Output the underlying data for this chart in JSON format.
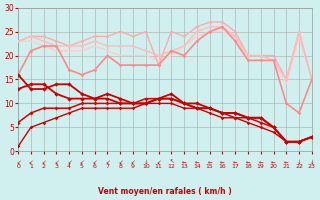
{
  "bg_color": "#cff0ee",
  "grid_color": "#aaaaaa",
  "xlabel": "Vent moyen/en rafales ( km/h )",
  "xlabel_color": "#cc0000",
  "tick_color": "#cc0000",
  "xlim": [
    0,
    23
  ],
  "ylim": [
    0,
    30
  ],
  "yticks": [
    0,
    5,
    10,
    15,
    20,
    25,
    30
  ],
  "xticks": [
    0,
    1,
    2,
    3,
    4,
    5,
    6,
    7,
    8,
    9,
    10,
    11,
    12,
    13,
    14,
    15,
    16,
    17,
    18,
    19,
    20,
    21,
    22,
    23
  ],
  "lines": [
    {
      "comment": "light pink top line - starts ~23, dips, rises to 27, falls",
      "x": [
        0,
        1,
        2,
        3,
        4,
        5,
        6,
        7,
        8,
        9,
        10,
        11,
        12,
        13,
        14,
        15,
        16,
        17,
        18,
        19,
        20,
        21,
        22,
        23
      ],
      "y": [
        23,
        24,
        24,
        23,
        22,
        23,
        24,
        24,
        25,
        24,
        25,
        18,
        25,
        24,
        26,
        27,
        27,
        25,
        20,
        20,
        20,
        15,
        25,
        15
      ],
      "color": "#ffaaaa",
      "lw": 1.0,
      "marker": "o",
      "ms": 2.0,
      "zorder": 3
    },
    {
      "comment": "medium pink line - starts ~23, roughly flat then decreasing",
      "x": [
        0,
        1,
        2,
        3,
        4,
        5,
        6,
        7,
        8,
        9,
        10,
        11,
        12,
        13,
        14,
        15,
        16,
        17,
        18,
        19,
        20,
        21,
        22,
        23
      ],
      "y": [
        23,
        24,
        23,
        22,
        22,
        22,
        23,
        22,
        22,
        22,
        21,
        20,
        21,
        22,
        25,
        26,
        26,
        24,
        20,
        20,
        19,
        15,
        25,
        15
      ],
      "color": "#ffbbbb",
      "lw": 1.0,
      "marker": "o",
      "ms": 1.8,
      "zorder": 3
    },
    {
      "comment": "lighter pink declining line",
      "x": [
        0,
        1,
        2,
        3,
        4,
        5,
        6,
        7,
        8,
        9,
        10,
        11,
        12,
        13,
        14,
        15,
        16,
        17,
        18,
        19,
        20,
        21,
        22,
        23
      ],
      "y": [
        23,
        23,
        22,
        21,
        21,
        21,
        22,
        21,
        20,
        20,
        20,
        19,
        20,
        22,
        24,
        25,
        25,
        24,
        19,
        19,
        19,
        14,
        24,
        15
      ],
      "color": "#ffcccc",
      "lw": 1.0,
      "marker": null,
      "ms": 0,
      "zorder": 2
    },
    {
      "comment": "pink medium with dip around x=3-4, rises at end",
      "x": [
        0,
        1,
        2,
        3,
        4,
        5,
        6,
        7,
        8,
        9,
        10,
        11,
        12,
        13,
        14,
        15,
        16,
        17,
        18,
        19,
        20,
        21,
        22,
        23
      ],
      "y": [
        16,
        21,
        22,
        22,
        17,
        16,
        17,
        20,
        18,
        18,
        18,
        18,
        21,
        20,
        23,
        25,
        26,
        23,
        19,
        19,
        19,
        10,
        8,
        15
      ],
      "color": "#ff8888",
      "lw": 1.2,
      "marker": "o",
      "ms": 2.0,
      "zorder": 4
    },
    {
      "comment": "dark red top - starts ~16, rises to 17, decreases",
      "x": [
        0,
        1,
        2,
        3,
        4,
        5,
        6,
        7,
        8,
        9,
        10,
        11,
        12,
        13,
        14,
        15,
        16,
        17,
        18,
        19,
        20,
        21,
        22,
        23
      ],
      "y": [
        16,
        13,
        13,
        14,
        14,
        12,
        11,
        12,
        11,
        10,
        10,
        11,
        11,
        10,
        9,
        9,
        8,
        8,
        7,
        7,
        5,
        2,
        2,
        3
      ],
      "color": "#cc0000",
      "lw": 1.3,
      "marker": "D",
      "ms": 2.2,
      "zorder": 5
    },
    {
      "comment": "dark red - starts ~14, decreases",
      "x": [
        0,
        1,
        2,
        3,
        4,
        5,
        6,
        7,
        8,
        9,
        10,
        11,
        12,
        13,
        14,
        15,
        16,
        17,
        18,
        19,
        20,
        21,
        22,
        23
      ],
      "y": [
        13,
        14,
        14,
        12,
        11,
        11,
        11,
        11,
        10,
        10,
        10,
        11,
        12,
        10,
        10,
        9,
        8,
        8,
        7,
        7,
        5,
        2,
        2,
        3
      ],
      "color": "#cc0000",
      "lw": 1.3,
      "marker": "D",
      "ms": 2.2,
      "zorder": 5
    },
    {
      "comment": "dark red - starts low ~6, rises to ~11, then decreases",
      "x": [
        0,
        1,
        2,
        3,
        4,
        5,
        6,
        7,
        8,
        9,
        10,
        11,
        12,
        13,
        14,
        15,
        16,
        17,
        18,
        19,
        20,
        21,
        22,
        23
      ],
      "y": [
        6,
        8,
        9,
        9,
        9,
        10,
        10,
        10,
        10,
        10,
        11,
        11,
        11,
        10,
        9,
        9,
        8,
        7,
        7,
        6,
        5,
        2,
        2,
        3
      ],
      "color": "#dd0000",
      "lw": 1.1,
      "marker": "D",
      "ms": 2.0,
      "zorder": 4
    },
    {
      "comment": "dark red lowest - starts ~1, rises to ~10, then decreases",
      "x": [
        0,
        1,
        2,
        3,
        4,
        5,
        6,
        7,
        8,
        9,
        10,
        11,
        12,
        13,
        14,
        15,
        16,
        17,
        18,
        19,
        20,
        21,
        22,
        23
      ],
      "y": [
        1,
        5,
        6,
        7,
        8,
        9,
        9,
        9,
        9,
        9,
        10,
        10,
        10,
        9,
        9,
        8,
        7,
        7,
        6,
        5,
        4,
        2,
        2,
        3
      ],
      "color": "#cc0000",
      "lw": 1.0,
      "marker": "D",
      "ms": 1.8,
      "zorder": 4
    }
  ],
  "wind_symbols": [
    "↙",
    "↙",
    "↙",
    "↙",
    "↙",
    "↙",
    "↙",
    "↙",
    "↙",
    "↙",
    "↓",
    "↙",
    "↖",
    "←",
    "←",
    "←",
    "←",
    "←",
    "←",
    "←",
    "←",
    "←",
    "↓",
    "↓"
  ]
}
